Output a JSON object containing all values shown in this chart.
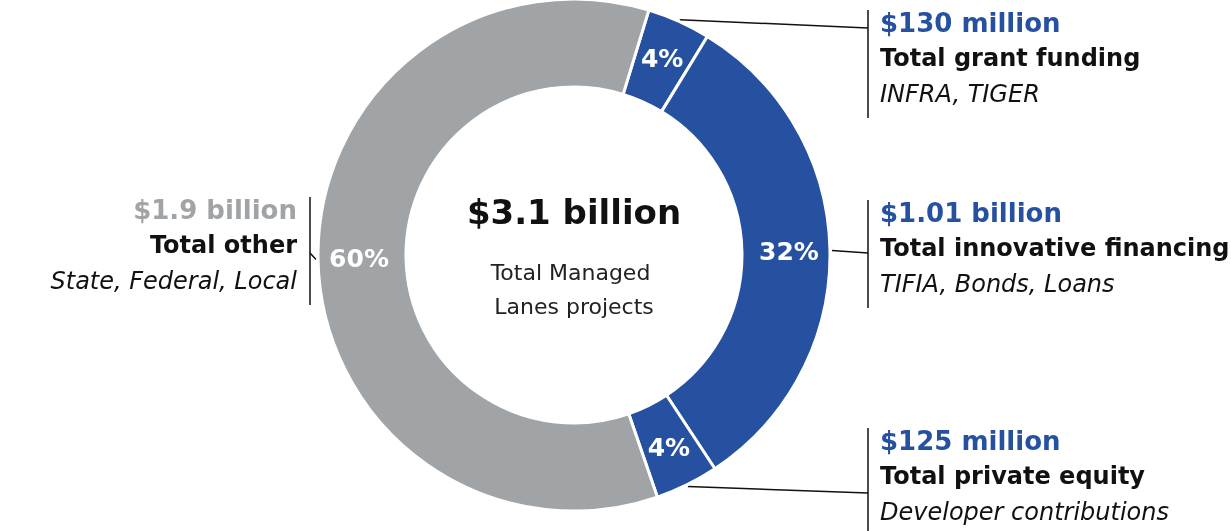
{
  "chart_data": {
    "type": "donut",
    "title": "$3.1 billion",
    "subtitle": "Total Managed Lanes projects",
    "categories": [
      "Total grant funding",
      "Total innovative financing",
      "Total private equity",
      "Total other"
    ],
    "values": [
      4,
      32,
      4,
      60
    ],
    "value_labels": [
      "4%",
      "32%",
      "4%",
      "60%"
    ],
    "colors": [
      "#2651a1",
      "#2651a1",
      "#2651a1",
      "#a0a4a7"
    ],
    "annotations": [
      "$130 million",
      "INFRA, TIGER",
      "$1.01 billion",
      "TIFIA, Bonds, Loans",
      "$125 million",
      "Developer contributions",
      "$1.9 billion",
      "State, Federal, Local"
    ],
    "legend": false
  }
}
